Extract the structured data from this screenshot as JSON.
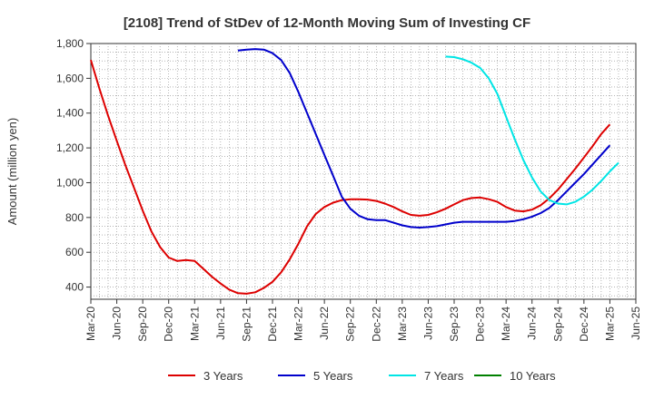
{
  "chart_data": {
    "type": "line",
    "title": "[2108]  Trend of StDev of 12-Month Moving Sum of Investing CF",
    "ylabel": "Amount (million yen)",
    "xlabel": "",
    "ylim": [
      330,
      1800
    ],
    "yticks": [
      400,
      600,
      800,
      "1,000",
      "1,200",
      "1,400",
      "1,600",
      "1,800"
    ],
    "ytick_values": [
      400,
      600,
      800,
      1000,
      1200,
      1400,
      1600,
      1800
    ],
    "x_start": "2020-03",
    "x_end": "2025-06",
    "xticks": [
      "Mar-20",
      "Jun-20",
      "Sep-20",
      "Dec-20",
      "Mar-21",
      "Jun-21",
      "Sep-21",
      "Dec-21",
      "Mar-22",
      "Jun-22",
      "Sep-22",
      "Dec-22",
      "Mar-23",
      "Jun-23",
      "Sep-23",
      "Dec-23",
      "Mar-24",
      "Jun-24",
      "Sep-24",
      "Dec-24",
      "Mar-25",
      "Jun-25"
    ],
    "grid": true,
    "legend_position": "bottom",
    "series": [
      {
        "name": "3 Years",
        "color": "#dd0000",
        "start": "2020-03",
        "values": [
          1705,
          1540,
          1385,
          1240,
          1100,
          970,
          840,
          720,
          630,
          570,
          550,
          555,
          550,
          505,
          460,
          420,
          385,
          365,
          362,
          370,
          395,
          430,
          485,
          560,
          650,
          750,
          820,
          860,
          885,
          900,
          905,
          905,
          903,
          895,
          880,
          860,
          835,
          815,
          810,
          815,
          830,
          850,
          875,
          900,
          912,
          915,
          905,
          890,
          860,
          840,
          835,
          845,
          870,
          910,
          960,
          1020,
          1080,
          1145,
          1210,
          1280,
          1335
        ],
        "values_note_start_month_index": 0
      },
      {
        "name": "5 Years",
        "color": "#0000cc",
        "start": "2021-08",
        "values": [
          1760,
          1765,
          1768,
          1765,
          1745,
          1705,
          1630,
          1520,
          1400,
          1280,
          1160,
          1040,
          920,
          850,
          810,
          790,
          785,
          785,
          770,
          755,
          745,
          742,
          745,
          750,
          760,
          770,
          775,
          775,
          775,
          775,
          775,
          775,
          780,
          790,
          805,
          825,
          855,
          900,
          950,
          1000,
          1050,
          1105,
          1160,
          1215
        ]
      },
      {
        "name": "7 Years",
        "color": "#00e5e5",
        "start": "2023-08",
        "values": [
          1725,
          1722,
          1710,
          1690,
          1660,
          1600,
          1510,
          1380,
          1250,
          1130,
          1030,
          950,
          900,
          880,
          875,
          890,
          920,
          960,
          1010,
          1065,
          1115
        ]
      },
      {
        "name": "10 Years",
        "color": "#008000",
        "start": "2025-03",
        "values": []
      }
    ]
  }
}
